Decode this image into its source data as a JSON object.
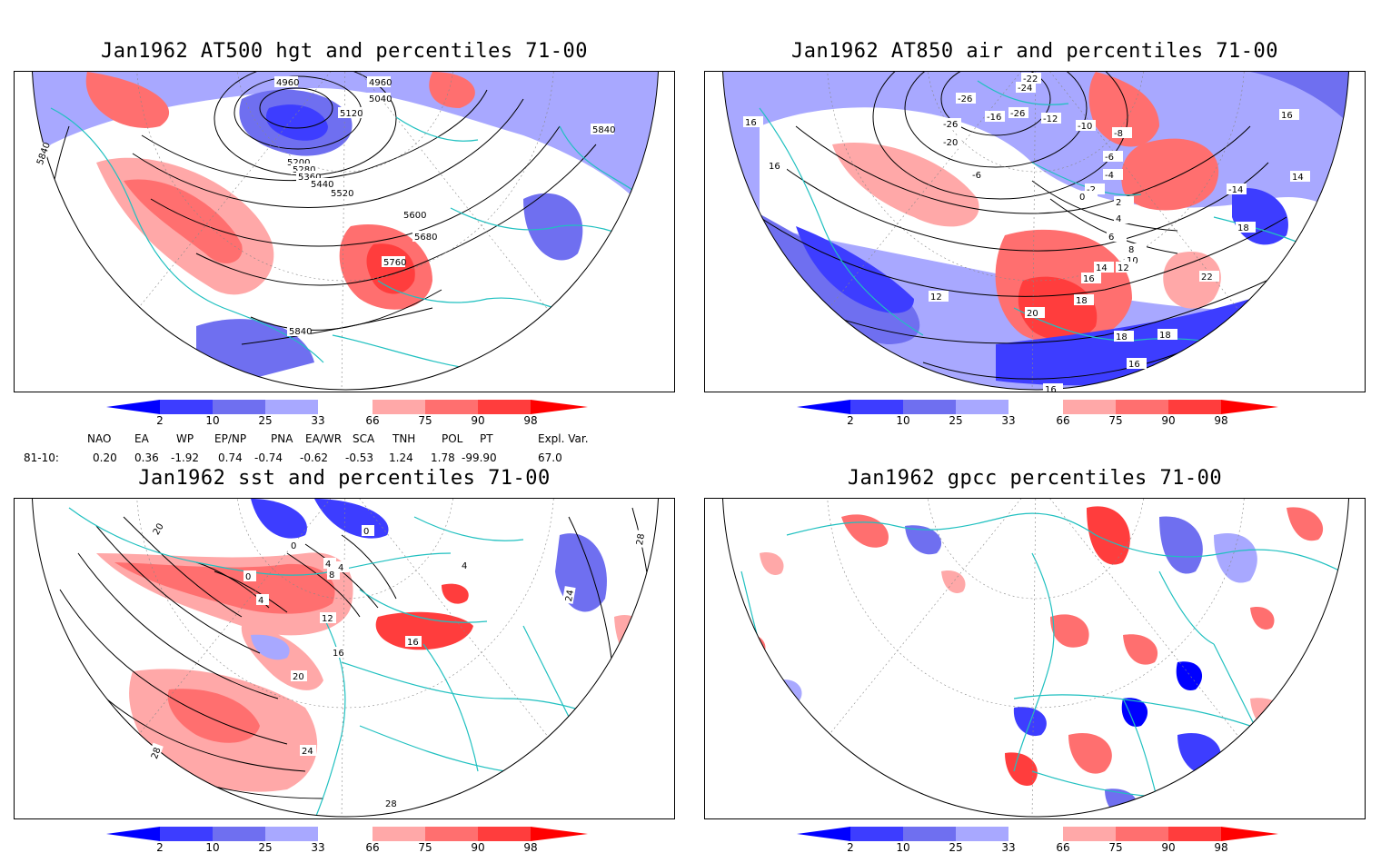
{
  "panels": {
    "p1": {
      "title": "Jan1962 AT500 hgt and percentiles 71-00",
      "contour_labels": [
        "4960",
        "4960",
        "5040",
        "5120",
        "5200",
        "5280",
        "5360",
        "5440",
        "5520",
        "5600",
        "5680",
        "5760",
        "5840",
        "5840",
        "5840"
      ]
    },
    "p2": {
      "title": "Jan1962 AT850 air and percentiles 71-00",
      "contour_labels": [
        "-22",
        "-24",
        "-26",
        "-26",
        "-16",
        "-26",
        "-12",
        "-10",
        "-8",
        "-6",
        "-4",
        "-2",
        "0",
        "2",
        "4",
        "6",
        "8",
        "10",
        "12",
        "14",
        "16",
        "18",
        "20",
        "22",
        "16",
        "16",
        "16",
        "14",
        "12",
        "18",
        "18",
        "18",
        "16",
        "16",
        "-20",
        "-6",
        "-14"
      ]
    },
    "p3": {
      "title": "Jan1962 sst and percentiles 71-00",
      "contour_labels": [
        "20",
        "0",
        "0",
        "0",
        "4",
        "4",
        "4",
        "8",
        "12",
        "16",
        "20",
        "24",
        "28",
        "28",
        "24",
        "16",
        "4",
        "28"
      ]
    },
    "p4": {
      "title": "Jan1962 gpcc percentiles 71-00"
    }
  },
  "colorbar": {
    "ticks": [
      "2",
      "10",
      "25",
      "33",
      "66",
      "75",
      "90",
      "98"
    ],
    "colors": [
      "#0000ff",
      "#3d3dff",
      "#6f6ff0",
      "#a8a8ff",
      "#ffffff",
      "#ffa8a8",
      "#ff6f6f",
      "#ff3d3d",
      "#ff0000"
    ]
  },
  "indices": {
    "headers": [
      "NAO",
      "EA",
      "WP",
      "EP/NP",
      "PNA",
      "EA/WR",
      "SCA",
      "TNH",
      "POL",
      "PT",
      "Expl. Var."
    ],
    "row_label": "81-10:",
    "values": [
      "0.20",
      "0.36",
      "-1.92",
      "0.74",
      "-0.74",
      "-0.62",
      "-0.53",
      "1.24",
      "1.78",
      "-99.90",
      "67.0"
    ]
  }
}
